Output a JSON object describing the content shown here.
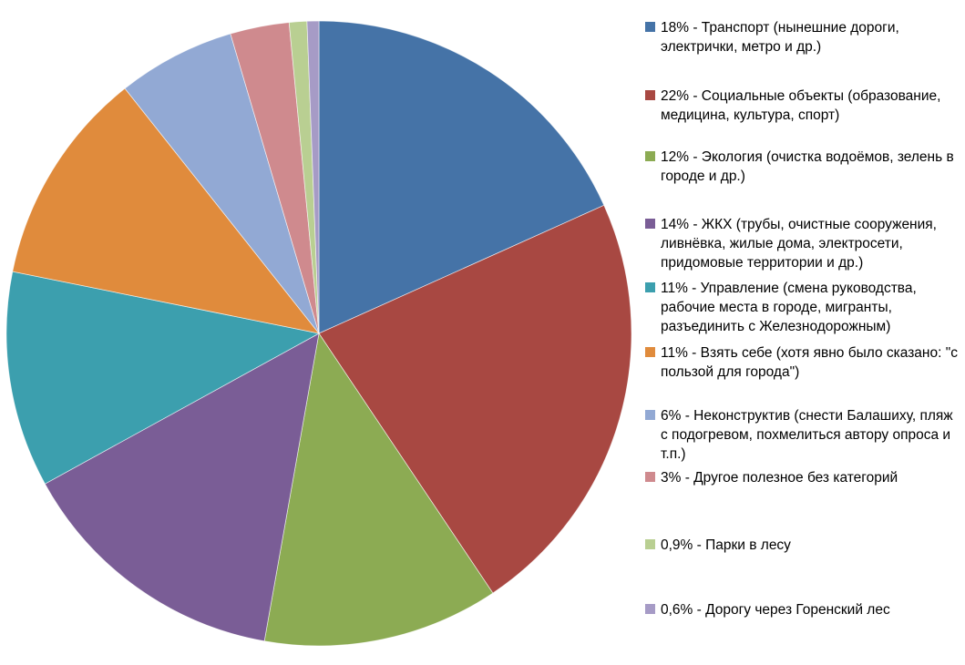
{
  "chart_data": {
    "type": "pie",
    "title": "",
    "legend_position": "right",
    "direction": "clockwise",
    "start_angle_deg": 0,
    "categories": [
      "18% - Транспорт (нынешние дороги, электрички, метро и др.)",
      "22% - Социальные объекты (образование, медицина, культура, спорт)",
      "12% - Экология (очистка водоёмов, зелень в городе и др.)",
      "14% - ЖКХ (трубы, очистные сооружения, ливнёвка, жилые дома, электросети, придомовые территории и др.)",
      "11% - Управление (смена руководства, рабочие места в городе, мигранты, разъединить с Железнодорожным)",
      "11% - Взять себе (хотя явно было сказано: \"с пользой для города\")",
      "6% - Неконструктив (снести Балашиху, пляж с подогревом, похмелиться автору опроса и т.п.)",
      "3% - Другое полезное без категорий",
      "0,9% - Парки в лесу",
      "0,6% - Дорогу через Горенский лес"
    ],
    "percent_labels": [
      "18%",
      "22%",
      "12%",
      "14%",
      "11%",
      "11%",
      "6%",
      "3%",
      "0,9%",
      "0,6%"
    ],
    "values": [
      18,
      22,
      12,
      14,
      11,
      11,
      6,
      3,
      0.9,
      0.6
    ],
    "colors": [
      "#4573a7",
      "#a84842",
      "#8cab53",
      "#7a5d96",
      "#3c9fae",
      "#e08b3c",
      "#92a9d4",
      "#cf8a8e",
      "#b9cf92",
      "#a69bc6"
    ]
  }
}
